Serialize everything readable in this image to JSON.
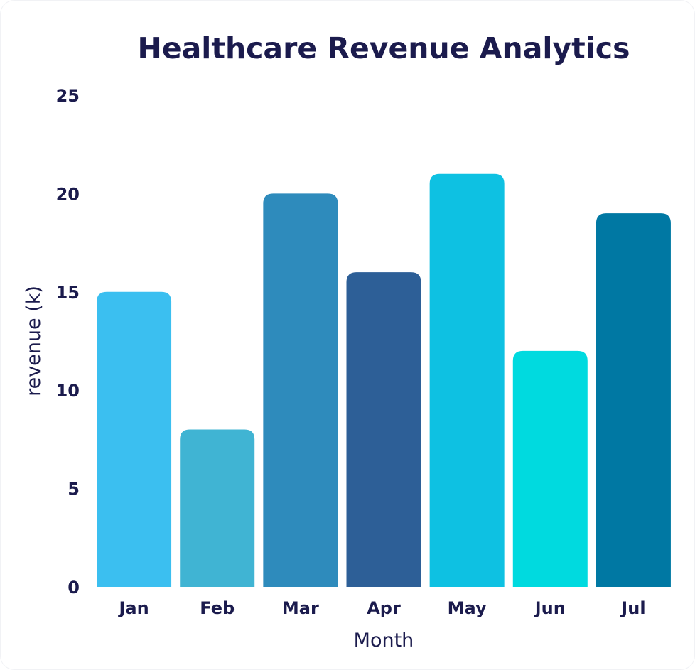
{
  "chart_data": {
    "type": "bar",
    "title": "Healthcare Revenue Analytics",
    "xlabel": "Month",
    "ylabel": "revenue (k)",
    "categories": [
      "Jan",
      "Feb",
      "Mar",
      "Apr",
      "May",
      "Jun",
      "Jul"
    ],
    "values": [
      15,
      8,
      20,
      16,
      21,
      12,
      19
    ],
    "colors": [
      "#3bbff0",
      "#40b4d3",
      "#2e8bbc",
      "#2d5f97",
      "#0ec1e2",
      "#00dadf",
      "#0078a3"
    ],
    "ylim": [
      0,
      25
    ],
    "yticks": [
      0,
      5,
      10,
      15,
      20,
      25
    ],
    "grid": false,
    "legend": "none"
  }
}
